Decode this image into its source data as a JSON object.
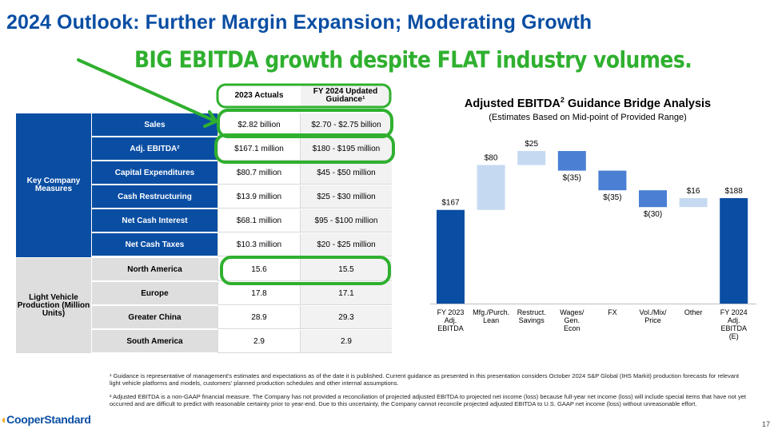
{
  "title": "2024 Outlook: Further Margin Expansion; Moderating Growth",
  "annotation": "BIG EBITDA growth despite FLAT industry volumes.",
  "table": {
    "col_headers": [
      "2023 Actuals",
      "FY 2024 Updated Guidance¹"
    ],
    "groups": [
      {
        "label": "Key Company Measures",
        "rows": [
          {
            "label": "Sales",
            "actual": "$2.82 billion",
            "guidance": "$2.70 - $2.75 billion"
          },
          {
            "label": "Adj. EBITDA²",
            "actual": "$167.1 million",
            "guidance": "$180 - $195 million"
          },
          {
            "label": "Capital Expenditures",
            "actual": "$80.7 million",
            "guidance": "$45 - $50 million"
          },
          {
            "label": "Cash Restructuring",
            "actual": "$13.9 million",
            "guidance": "$25 - $30 million"
          },
          {
            "label": "Net Cash Interest",
            "actual": "$68.1 million",
            "guidance": "$95 - $100 million"
          },
          {
            "label": "Net Cash Taxes",
            "actual": "$10.3 million",
            "guidance": "$20 - $25 million"
          }
        ]
      },
      {
        "label": "Light Vehicle Production (Million Units)",
        "rows": [
          {
            "label": "North America",
            "actual": "15.6",
            "guidance": "15.5"
          },
          {
            "label": "Europe",
            "actual": "17.8",
            "guidance": "17.1"
          },
          {
            "label": "Greater China",
            "actual": "28.9",
            "guidance": "29.3"
          },
          {
            "label": "South America",
            "actual": "2.9",
            "guidance": "2.9"
          }
        ]
      }
    ]
  },
  "chart_data": {
    "type": "bar",
    "title": "Adjusted EBITDA² Guidance Bridge Analysis",
    "subtitle": "(Estimates Based on Mid-point of Provided Range)",
    "categories": [
      "FY 2023\nAdj.\nEBITDA",
      "Mfg./Purch.\nLean",
      "Restruct.\nSavings",
      "Wages/\nGen.\nEcon",
      "FX",
      "Vol./Mix/\nPrice",
      "Other",
      "FY 2024\nAdj.\nEBITDA\n(E)"
    ],
    "values": [
      167,
      80,
      25,
      -35,
      -35,
      -30,
      16,
      188
    ],
    "data_labels": [
      "$167",
      "$80",
      "$25",
      "$(35)",
      "$(35)",
      "$(30)",
      "$16",
      "$188"
    ],
    "kinds": [
      "total",
      "increase",
      "increase",
      "decrease",
      "decrease",
      "decrease",
      "increase",
      "total"
    ],
    "colors": {
      "total": "#0a4ea3",
      "increase": "#c5d9f1",
      "decrease": "#4a7fd4"
    }
  },
  "footnotes": [
    "¹ Guidance is representative of management's estimates and expectations as of the date it is published. Current guidance as presented in this presentation considers October 2024 S&P Global (IHS Markit) production forecasts for relevant light vehicle platforms and models, customers' planned production schedules and other internal assumptions.",
    "² Adjusted EBITDA is a non-GAAP financial measure. The Company has not provided a reconciliation of projected adjusted EBITDA to projected net income (loss) because full-year net income (loss) will include special items that have not yet occurred and are difficult to predict with reasonable certainty prior to year-end. Due to this uncertainty, the Company cannot reconcile projected adjusted EBITDA to U.S. GAAP net income (loss) without unreasonable effort."
  ],
  "logo_text": "CooperStandard",
  "page_number": "17",
  "colors": {
    "brand_blue": "#0a4ea3",
    "highlight_green": "#2fb02f"
  }
}
